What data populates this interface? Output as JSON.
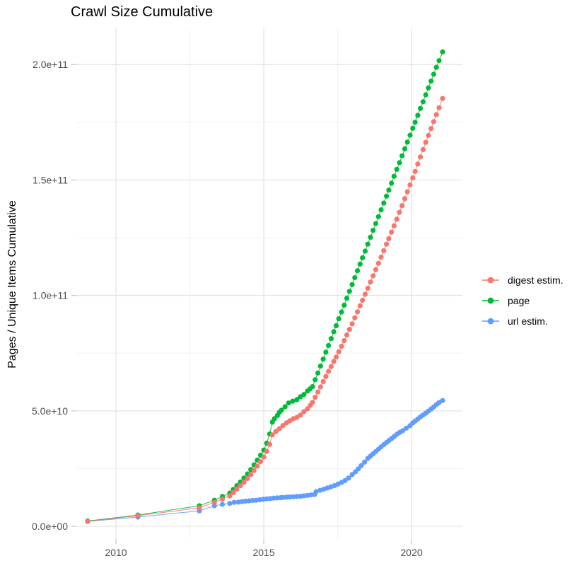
{
  "title": "Crawl Size Cumulative",
  "chart_data": {
    "type": "scatter",
    "title": "Crawl Size Cumulative",
    "xlabel": "",
    "ylabel": "Pages / Unique Items Cumulative",
    "grid": true,
    "legend_position": "right",
    "value_unit": "billions of pages (1e9)",
    "x_axis": {
      "lim": [
        2008.66,
        2021.72
      ],
      "ticks": [
        {
          "value": 2010,
          "label": "2010"
        },
        {
          "value": 2015,
          "label": "2015"
        },
        {
          "value": 2020,
          "label": "2020"
        }
      ],
      "minor": [
        2012.5,
        2017.5
      ]
    },
    "y_axis": {
      "lim": [
        -5.5,
        215.7
      ],
      "ticks": [
        {
          "value": 0,
          "label": "0.0e+00"
        },
        {
          "value": 50,
          "label": "5.0e+10"
        },
        {
          "value": 100,
          "label": "1.0e+11"
        },
        {
          "value": 150,
          "label": "1.5e+11"
        },
        {
          "value": 200,
          "label": "2.0e+11"
        }
      ],
      "minor": [
        25,
        75,
        125,
        175
      ]
    },
    "series": [
      {
        "name": "url estim.",
        "color": "#619CFF",
        "points": [
          [
            2009.04,
            2.1
          ],
          [
            2010.74,
            4.0
          ],
          [
            2012.82,
            6.7
          ],
          [
            2013.33,
            8.9
          ],
          [
            2013.6,
            9.5
          ],
          [
            2013.85,
            9.9
          ],
          [
            2014.0,
            10.4
          ],
          [
            2014.14,
            10.5
          ],
          [
            2014.26,
            10.7
          ],
          [
            2014.38,
            10.9
          ],
          [
            2014.5,
            11.0
          ],
          [
            2014.62,
            11.2
          ],
          [
            2014.74,
            11.3
          ],
          [
            2014.86,
            11.5
          ],
          [
            2014.98,
            11.7
          ],
          [
            2015.1,
            11.9
          ],
          [
            2015.22,
            12.0
          ],
          [
            2015.33,
            12.2
          ],
          [
            2015.45,
            12.3
          ],
          [
            2015.57,
            12.4
          ],
          [
            2015.65,
            12.5
          ],
          [
            2015.77,
            12.6
          ],
          [
            2015.88,
            12.7
          ],
          [
            2016.0,
            12.8
          ],
          [
            2016.12,
            12.9
          ],
          [
            2016.24,
            13.0
          ],
          [
            2016.36,
            13.2
          ],
          [
            2016.48,
            13.4
          ],
          [
            2016.6,
            13.6
          ],
          [
            2016.72,
            13.8
          ],
          [
            2016.77,
            15.0
          ],
          [
            2016.91,
            15.6
          ],
          [
            2017.03,
            16.1
          ],
          [
            2017.15,
            16.6
          ],
          [
            2017.27,
            17.1
          ],
          [
            2017.39,
            17.6
          ],
          [
            2017.51,
            18.3
          ],
          [
            2017.63,
            19.0
          ],
          [
            2017.75,
            19.8
          ],
          [
            2017.87,
            20.9
          ],
          [
            2017.99,
            22.4
          ],
          [
            2018.1,
            23.6
          ],
          [
            2018.2,
            24.9
          ],
          [
            2018.3,
            26.3
          ],
          [
            2018.41,
            27.8
          ],
          [
            2018.52,
            29.4
          ],
          [
            2018.61,
            30.4
          ],
          [
            2018.7,
            31.4
          ],
          [
            2018.79,
            32.4
          ],
          [
            2018.88,
            33.4
          ],
          [
            2018.97,
            34.4
          ],
          [
            2019.06,
            35.4
          ],
          [
            2019.15,
            36.3
          ],
          [
            2019.24,
            37.2
          ],
          [
            2019.33,
            38.1
          ],
          [
            2019.42,
            39.0
          ],
          [
            2019.51,
            39.9
          ],
          [
            2019.6,
            40.7
          ],
          [
            2019.7,
            41.4
          ],
          [
            2019.82,
            42.5
          ],
          [
            2019.95,
            43.6
          ],
          [
            2020.04,
            44.8
          ],
          [
            2020.12,
            45.6
          ],
          [
            2020.21,
            46.5
          ],
          [
            2020.3,
            47.4
          ],
          [
            2020.39,
            48.2
          ],
          [
            2020.48,
            49.0
          ],
          [
            2020.57,
            49.9
          ],
          [
            2020.66,
            50.8
          ],
          [
            2020.75,
            51.7
          ],
          [
            2020.84,
            52.7
          ],
          [
            2020.93,
            53.6
          ],
          [
            2021.05,
            54.5
          ]
        ]
      },
      {
        "name": "page",
        "color": "#00BA38",
        "points": [
          [
            2009.04,
            2.3
          ],
          [
            2010.74,
            4.9
          ],
          [
            2012.82,
            8.9
          ],
          [
            2013.33,
            11.3
          ],
          [
            2013.6,
            12.9
          ],
          [
            2013.85,
            14.4
          ],
          [
            2013.97,
            16.0
          ],
          [
            2014.09,
            17.6
          ],
          [
            2014.21,
            19.2
          ],
          [
            2014.33,
            20.9
          ],
          [
            2014.45,
            22.7
          ],
          [
            2014.56,
            24.6
          ],
          [
            2014.67,
            26.6
          ],
          [
            2014.78,
            28.7
          ],
          [
            2014.89,
            30.8
          ],
          [
            2015.0,
            33.0
          ],
          [
            2015.1,
            36.0
          ],
          [
            2015.2,
            40.0
          ],
          [
            2015.29,
            45.1
          ],
          [
            2015.36,
            46.6
          ],
          [
            2015.46,
            48.0
          ],
          [
            2015.53,
            49.4
          ],
          [
            2015.6,
            50.3
          ],
          [
            2015.72,
            51.8
          ],
          [
            2015.84,
            53.4
          ],
          [
            2015.98,
            54.2
          ],
          [
            2016.12,
            54.9
          ],
          [
            2016.24,
            56.1
          ],
          [
            2016.36,
            57.1
          ],
          [
            2016.48,
            58.6
          ],
          [
            2016.56,
            59.5
          ],
          [
            2016.65,
            60.5
          ],
          [
            2016.74,
            63.5
          ],
          [
            2016.83,
            66.4
          ],
          [
            2016.92,
            69.4
          ],
          [
            2017.01,
            72.4
          ],
          [
            2017.1,
            75.4
          ],
          [
            2017.19,
            78.3
          ],
          [
            2017.28,
            81.3
          ],
          [
            2017.37,
            84.3
          ],
          [
            2017.45,
            86.9
          ],
          [
            2017.54,
            89.9
          ],
          [
            2017.63,
            92.8
          ],
          [
            2017.72,
            95.8
          ],
          [
            2017.81,
            98.8
          ],
          [
            2017.9,
            101.8
          ],
          [
            2017.99,
            104.7
          ],
          [
            2018.08,
            107.7
          ],
          [
            2018.17,
            110.7
          ],
          [
            2018.26,
            113.6
          ],
          [
            2018.34,
            116.3
          ],
          [
            2018.43,
            119.2
          ],
          [
            2018.52,
            122.2
          ],
          [
            2018.61,
            125.2
          ],
          [
            2018.7,
            128.2
          ],
          [
            2018.79,
            131.1
          ],
          [
            2018.88,
            134.1
          ],
          [
            2018.97,
            137.1
          ],
          [
            2019.06,
            140.0
          ],
          [
            2019.15,
            143.0
          ],
          [
            2019.23,
            145.6
          ],
          [
            2019.32,
            148.6
          ],
          [
            2019.41,
            151.6
          ],
          [
            2019.5,
            154.6
          ],
          [
            2019.59,
            157.5
          ],
          [
            2019.68,
            160.5
          ],
          [
            2019.77,
            163.5
          ],
          [
            2019.86,
            166.4
          ],
          [
            2019.95,
            169.4
          ],
          [
            2020.04,
            172.4
          ],
          [
            2020.12,
            175.0
          ],
          [
            2020.21,
            178.0
          ],
          [
            2020.3,
            181.0
          ],
          [
            2020.39,
            183.9
          ],
          [
            2020.48,
            186.9
          ],
          [
            2020.57,
            189.9
          ],
          [
            2020.66,
            192.8
          ],
          [
            2020.75,
            195.8
          ],
          [
            2020.84,
            198.8
          ],
          [
            2020.93,
            201.7
          ],
          [
            2021.05,
            205.5
          ]
        ]
      },
      {
        "name": "digest estim.",
        "color": "#F8766D",
        "points": [
          [
            2009.04,
            2.1
          ],
          [
            2010.74,
            4.6
          ],
          [
            2012.82,
            8.0
          ],
          [
            2013.33,
            10.4
          ],
          [
            2013.6,
            11.8
          ],
          [
            2013.85,
            13.2
          ],
          [
            2013.97,
            14.6
          ],
          [
            2014.09,
            16.1
          ],
          [
            2014.21,
            17.6
          ],
          [
            2014.33,
            19.1
          ],
          [
            2014.45,
            20.7
          ],
          [
            2014.56,
            22.4
          ],
          [
            2014.67,
            24.2
          ],
          [
            2014.78,
            26.1
          ],
          [
            2014.89,
            28.0
          ],
          [
            2015.0,
            30.0
          ],
          [
            2015.1,
            32.5
          ],
          [
            2015.2,
            35.5
          ],
          [
            2015.29,
            39.6
          ],
          [
            2015.41,
            41.1
          ],
          [
            2015.53,
            42.3
          ],
          [
            2015.65,
            43.6
          ],
          [
            2015.77,
            44.8
          ],
          [
            2015.88,
            45.7
          ],
          [
            2016.0,
            46.6
          ],
          [
            2016.12,
            47.2
          ],
          [
            2016.24,
            48.2
          ],
          [
            2016.36,
            49.7
          ],
          [
            2016.48,
            50.9
          ],
          [
            2016.58,
            52.4
          ],
          [
            2016.65,
            53.7
          ],
          [
            2016.74,
            55.9
          ],
          [
            2016.83,
            58.2
          ],
          [
            2016.92,
            60.4
          ],
          [
            2017.01,
            62.7
          ],
          [
            2017.1,
            64.9
          ],
          [
            2017.19,
            67.1
          ],
          [
            2017.28,
            69.2
          ],
          [
            2017.37,
            71.4
          ],
          [
            2017.45,
            73.3
          ],
          [
            2017.54,
            75.6
          ],
          [
            2017.63,
            78.0
          ],
          [
            2017.72,
            80.4
          ],
          [
            2017.81,
            82.9
          ],
          [
            2017.9,
            85.3
          ],
          [
            2017.99,
            87.7
          ],
          [
            2018.08,
            90.3
          ],
          [
            2018.17,
            92.9
          ],
          [
            2018.26,
            95.5
          ],
          [
            2018.34,
            97.9
          ],
          [
            2018.43,
            100.5
          ],
          [
            2018.52,
            103.1
          ],
          [
            2018.61,
            105.8
          ],
          [
            2018.7,
            108.5
          ],
          [
            2018.79,
            111.2
          ],
          [
            2018.88,
            113.9
          ],
          [
            2018.97,
            116.6
          ],
          [
            2019.06,
            119.4
          ],
          [
            2019.15,
            122.2
          ],
          [
            2019.23,
            124.6
          ],
          [
            2019.32,
            127.4
          ],
          [
            2019.41,
            130.2
          ],
          [
            2019.5,
            133.0
          ],
          [
            2019.59,
            136.0
          ],
          [
            2019.68,
            138.9
          ],
          [
            2019.77,
            141.9
          ],
          [
            2019.86,
            144.9
          ],
          [
            2019.95,
            147.9
          ],
          [
            2020.04,
            150.9
          ],
          [
            2020.12,
            153.7
          ],
          [
            2020.21,
            156.9
          ],
          [
            2020.3,
            160.0
          ],
          [
            2020.39,
            163.2
          ],
          [
            2020.48,
            166.3
          ],
          [
            2020.57,
            169.3
          ],
          [
            2020.66,
            172.3
          ],
          [
            2020.75,
            175.3
          ],
          [
            2020.84,
            178.3
          ],
          [
            2020.93,
            181.3
          ],
          [
            2021.05,
            185.3
          ]
        ]
      }
    ],
    "legend_order": [
      "digest estim.",
      "page",
      "url estim."
    ],
    "style": {
      "grid_major_color": "#E3E3E3",
      "grid_minor_color": "#F0F0F0",
      "tick_color": "#C6C6C6",
      "tick_label_color": "#4D4D4D",
      "point_radius": 3.6
    }
  }
}
